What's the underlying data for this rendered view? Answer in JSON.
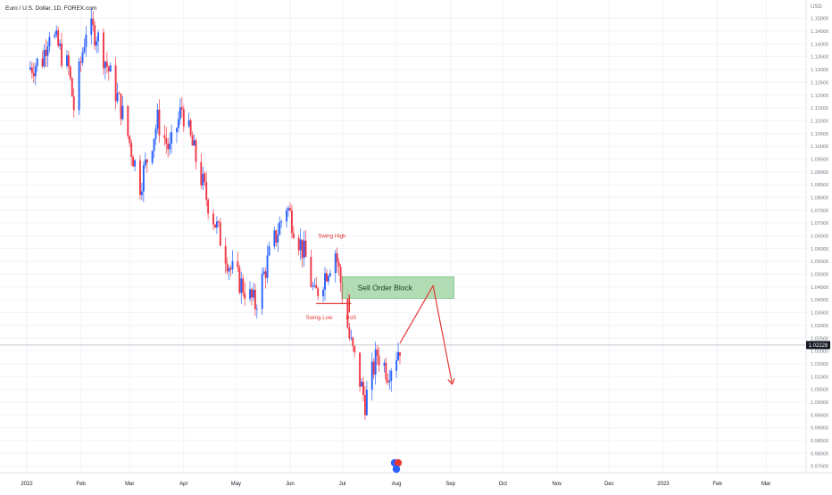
{
  "header": {
    "symbol_title": "Euro / U.S. Dollar, 1D, FOREX.com"
  },
  "price_axis": {
    "currency": "USD",
    "ticks": [
      "1.15000",
      "1.14500",
      "1.14000",
      "1.13500",
      "1.13000",
      "1.12500",
      "1.12000",
      "1.11500",
      "1.11000",
      "1.10500",
      "1.10000",
      "1.09500",
      "1.09000",
      "1.08500",
      "1.08000",
      "1.07500",
      "1.07000",
      "1.06500",
      "1.06000",
      "1.05500",
      "1.05000",
      "1.04500",
      "1.04000",
      "1.03500",
      "1.03000",
      "1.02500",
      "1.02000",
      "1.01500",
      "1.01000",
      "1.00500",
      "1.00000",
      "0.99500",
      "0.99000",
      "0.98500",
      "0.98000",
      "0.97500"
    ],
    "current_price": "1.02228"
  },
  "time_axis": {
    "labels": [
      "2022",
      "Feb",
      "Mar",
      "Apr",
      "May",
      "Jun",
      "Jul",
      "Aug",
      "Sep",
      "Oct",
      "Nov",
      "Dec",
      "2023",
      "Feb",
      "Mar"
    ]
  },
  "annotations": {
    "swing_high": "Swing High",
    "swing_low": "Swing Low",
    "bos": "BoS",
    "order_block": "Sell Order Block"
  },
  "colors": {
    "bull": "#2962ff",
    "bear": "#f23645",
    "order_block_fill": "#a5d6a7",
    "order_block_border": "#66bb6a",
    "annotation_red": "#e53935",
    "axis_text": "#787b86",
    "crosshair": "#b2b5be"
  },
  "chart_data": {
    "type": "candlestick",
    "title": "Euro / U.S. Dollar, 1D, FOREX.com",
    "y_unit": "USD",
    "ylim": [
      0.9725,
      1.1525
    ],
    "x_range": [
      "2022-01-01",
      "2023-03-31"
    ],
    "last_price": 1.02228,
    "price_path": [
      [
        "2022-01-01",
        1.13
      ],
      [
        "2022-01-10",
        1.134
      ],
      [
        "2022-01-14",
        1.146
      ],
      [
        "2022-01-25",
        1.13
      ],
      [
        "2022-01-28",
        1.115
      ],
      [
        "2022-02-04",
        1.146
      ],
      [
        "2022-02-10",
        1.144
      ],
      [
        "2022-02-24",
        1.115
      ],
      [
        "2022-03-07",
        1.085
      ],
      [
        "2022-03-17",
        1.11
      ],
      [
        "2022-03-24",
        1.098
      ],
      [
        "2022-03-31",
        1.115
      ],
      [
        "2022-04-14",
        1.08
      ],
      [
        "2022-04-28",
        1.052
      ],
      [
        "2022-05-12",
        1.038
      ],
      [
        "2022-05-20",
        1.057
      ],
      [
        "2022-05-30",
        1.077
      ],
      [
        "2022-06-10",
        1.056
      ],
      [
        "2022-06-15",
        1.041
      ],
      [
        "2022-06-27",
        1.059
      ],
      [
        "2022-07-01",
        1.043
      ],
      [
        "2022-07-05",
        1.025
      ],
      [
        "2022-07-14",
        1.0
      ],
      [
        "2022-07-21",
        1.019
      ],
      [
        "2022-07-27",
        1.012
      ],
      [
        "2022-08-03",
        1.022
      ]
    ],
    "segments": [
      {
        "kind": "swing_low_line",
        "from": [
          "2022-06-16",
          1.0385
        ],
        "to": [
          "2022-07-06",
          1.0385
        ]
      },
      {
        "kind": "bos_line",
        "from": [
          "2022-07-05",
          1.042
        ],
        "to": [
          "2022-07-05",
          1.035
        ]
      }
    ],
    "zones": [
      {
        "label": "Sell Order Block",
        "x_from": "2022-07-01",
        "x_to": "2022-09-03",
        "y_from": 1.0405,
        "y_to": 1.049
      }
    ],
    "projection": [
      [
        "2022-08-03",
        1.023
      ],
      [
        "2022-08-22",
        1.0455
      ],
      [
        "2022-09-02",
        1.007
      ]
    ]
  }
}
